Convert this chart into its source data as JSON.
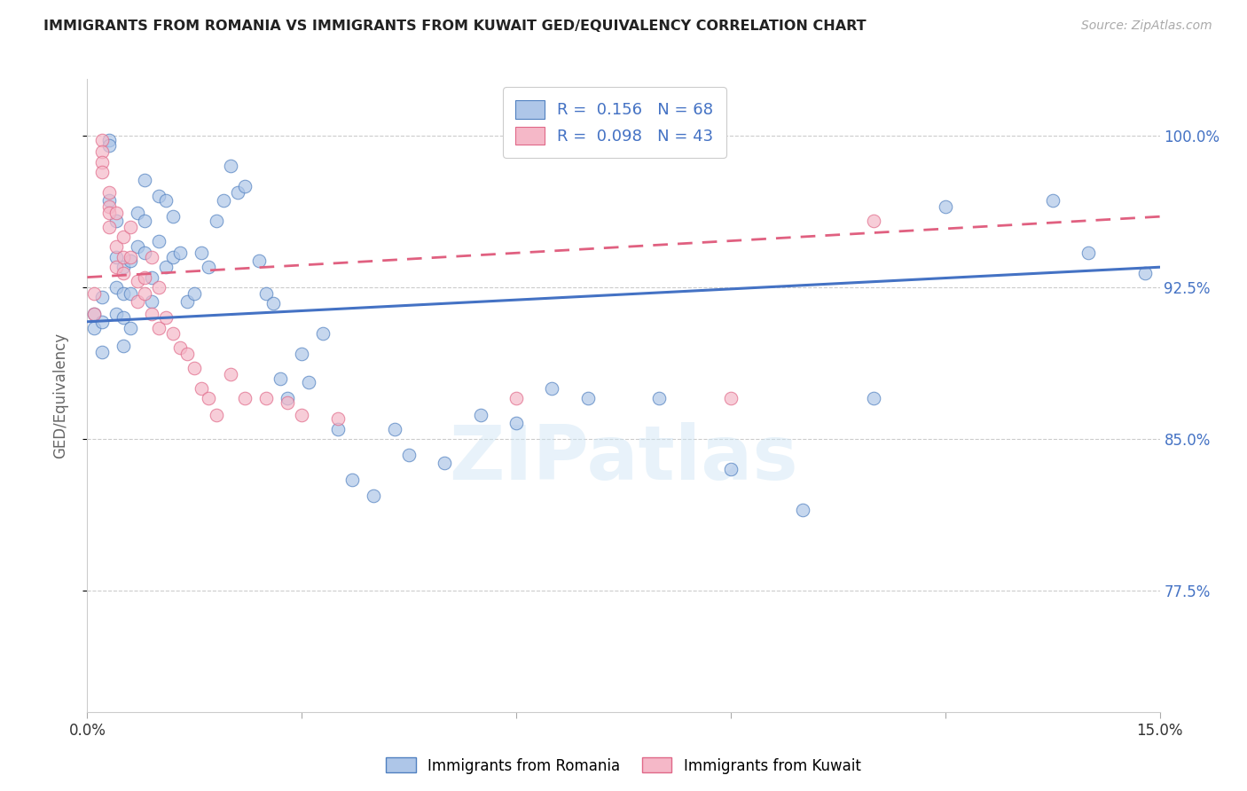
{
  "title": "IMMIGRANTS FROM ROMANIA VS IMMIGRANTS FROM KUWAIT GED/EQUIVALENCY CORRELATION CHART",
  "source": "Source: ZipAtlas.com",
  "ylabel": "GED/Equivalency",
  "ytick_labels": [
    "77.5%",
    "85.0%",
    "92.5%",
    "100.0%"
  ],
  "ytick_values": [
    0.775,
    0.85,
    0.925,
    1.0
  ],
  "xmin": 0.0,
  "xmax": 0.15,
  "ymin": 0.715,
  "ymax": 1.028,
  "romania_R": 0.156,
  "romania_N": 68,
  "kuwait_R": 0.098,
  "kuwait_N": 43,
  "romania_color": "#aec6e8",
  "kuwait_color": "#f5b8c8",
  "romania_edge_color": "#5080c0",
  "kuwait_edge_color": "#e06888",
  "romania_line_color": "#4472c4",
  "kuwait_line_color": "#e06080",
  "legend_label_romania": "Immigrants from Romania",
  "legend_label_kuwait": "Immigrants from Kuwait",
  "watermark": "ZIPatlas",
  "romania_trend_x": [
    0.0,
    0.15
  ],
  "romania_trend_y": [
    0.908,
    0.935
  ],
  "kuwait_trend_x": [
    0.0,
    0.15
  ],
  "kuwait_trend_y": [
    0.93,
    0.96
  ],
  "romania_x": [
    0.001,
    0.001,
    0.002,
    0.002,
    0.002,
    0.003,
    0.003,
    0.003,
    0.004,
    0.004,
    0.004,
    0.004,
    0.005,
    0.005,
    0.005,
    0.005,
    0.006,
    0.006,
    0.006,
    0.007,
    0.007,
    0.008,
    0.008,
    0.008,
    0.009,
    0.009,
    0.01,
    0.01,
    0.011,
    0.011,
    0.012,
    0.012,
    0.013,
    0.014,
    0.015,
    0.016,
    0.017,
    0.018,
    0.019,
    0.02,
    0.021,
    0.022,
    0.024,
    0.025,
    0.026,
    0.027,
    0.028,
    0.03,
    0.031,
    0.033,
    0.035,
    0.037,
    0.04,
    0.043,
    0.045,
    0.05,
    0.055,
    0.06,
    0.065,
    0.07,
    0.08,
    0.09,
    0.1,
    0.11,
    0.12,
    0.135,
    0.14,
    0.148
  ],
  "romania_y": [
    0.912,
    0.905,
    0.92,
    0.908,
    0.893,
    0.968,
    0.998,
    0.995,
    0.958,
    0.94,
    0.925,
    0.912,
    0.935,
    0.922,
    0.91,
    0.896,
    0.938,
    0.922,
    0.905,
    0.962,
    0.945,
    0.978,
    0.958,
    0.942,
    0.93,
    0.918,
    0.97,
    0.948,
    0.935,
    0.968,
    0.94,
    0.96,
    0.942,
    0.918,
    0.922,
    0.942,
    0.935,
    0.958,
    0.968,
    0.985,
    0.972,
    0.975,
    0.938,
    0.922,
    0.917,
    0.88,
    0.87,
    0.892,
    0.878,
    0.902,
    0.855,
    0.83,
    0.822,
    0.855,
    0.842,
    0.838,
    0.862,
    0.858,
    0.875,
    0.87,
    0.87,
    0.835,
    0.815,
    0.87,
    0.965,
    0.968,
    0.942,
    0.932
  ],
  "kuwait_x": [
    0.001,
    0.001,
    0.002,
    0.002,
    0.002,
    0.002,
    0.003,
    0.003,
    0.003,
    0.003,
    0.004,
    0.004,
    0.004,
    0.005,
    0.005,
    0.005,
    0.006,
    0.006,
    0.007,
    0.007,
    0.008,
    0.008,
    0.009,
    0.009,
    0.01,
    0.01,
    0.011,
    0.012,
    0.013,
    0.014,
    0.015,
    0.016,
    0.017,
    0.018,
    0.02,
    0.022,
    0.025,
    0.028,
    0.03,
    0.035,
    0.06,
    0.09,
    0.11
  ],
  "kuwait_y": [
    0.922,
    0.912,
    0.998,
    0.992,
    0.987,
    0.982,
    0.972,
    0.965,
    0.962,
    0.955,
    0.945,
    0.935,
    0.962,
    0.95,
    0.94,
    0.932,
    0.955,
    0.94,
    0.928,
    0.918,
    0.93,
    0.922,
    0.94,
    0.912,
    0.925,
    0.905,
    0.91,
    0.902,
    0.895,
    0.892,
    0.885,
    0.875,
    0.87,
    0.862,
    0.882,
    0.87,
    0.87,
    0.868,
    0.862,
    0.86,
    0.87,
    0.87,
    0.958
  ]
}
